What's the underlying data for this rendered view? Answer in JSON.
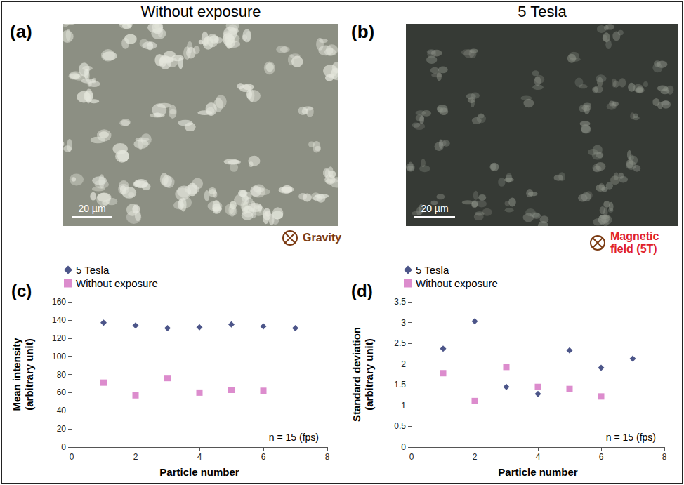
{
  "images": [
    {
      "label": "(a)",
      "title": "Without exposure",
      "scale_bar": "20 µm",
      "direction_label": "Gravity",
      "direction_color": "#7b3a12"
    },
    {
      "label": "(b)",
      "title": "5 Tesla",
      "scale_bar": "20 µm",
      "direction_label": "Magnetic field (5T)",
      "direction_color": "#e0202a"
    }
  ],
  "chart_data": [
    {
      "type": "scatter",
      "panel_label": "(c)",
      "x_label": "Particle number",
      "y_label": "Mean intensity\n(arbitrary unit)",
      "annotation": "n = 15 (fps)",
      "series": [
        {
          "name": "5 Tesla",
          "color": "#1f2a6b",
          "marker": "diamond",
          "x": [
            1,
            2,
            3,
            4,
            5,
            6,
            7
          ],
          "values": [
            137,
            134,
            131,
            132,
            135,
            133,
            131
          ]
        },
        {
          "name": "Without exposure",
          "color": "#d36fc0",
          "marker": "square",
          "x": [
            1,
            2,
            3,
            4,
            5,
            6
          ],
          "values": [
            71,
            57,
            76,
            60,
            63,
            62
          ]
        }
      ],
      "xlim": [
        0,
        8
      ],
      "xticks": [
        0,
        2,
        4,
        6,
        8
      ],
      "ylim": [
        0,
        160
      ],
      "yticks": [
        0,
        20,
        40,
        60,
        80,
        100,
        120,
        140,
        160
      ],
      "grid": false,
      "legend": "top left"
    },
    {
      "type": "scatter",
      "panel_label": "(d)",
      "x_label": "Particle number",
      "y_label": "Standard deviation\n(arbitrary unit)",
      "annotation": "n = 15 (fps)",
      "series": [
        {
          "name": "5 Tesla",
          "color": "#1f2a6b",
          "marker": "diamond",
          "x": [
            1,
            2,
            3,
            4,
            5,
            6,
            7
          ],
          "values": [
            2.37,
            3.03,
            1.45,
            1.28,
            2.33,
            1.91,
            2.13
          ]
        },
        {
          "name": "Without exposure",
          "color": "#d36fc0",
          "marker": "square",
          "x": [
            1,
            2,
            3,
            4,
            5,
            6
          ],
          "values": [
            1.78,
            1.11,
            1.93,
            1.45,
            1.4,
            1.22
          ]
        }
      ],
      "xlim": [
        0,
        8
      ],
      "xticks": [
        0,
        2,
        4,
        6,
        8
      ],
      "ylim": [
        0,
        3.5
      ],
      "yticks": [
        0,
        0.5,
        1,
        1.5,
        2,
        2.5,
        3,
        3.5
      ],
      "grid": false,
      "legend": "top left"
    }
  ]
}
